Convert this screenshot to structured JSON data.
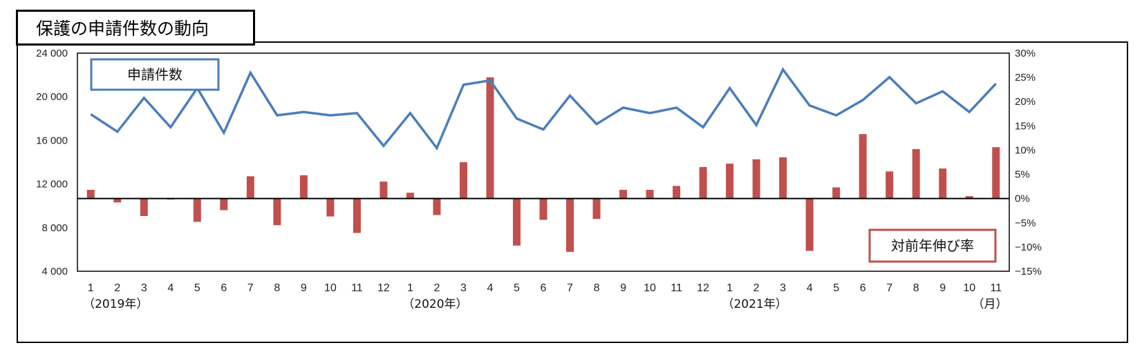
{
  "title": "保護の申請件数の動向",
  "chart_data": {
    "type": "bar+line",
    "categories": [
      "1",
      "2",
      "3",
      "4",
      "5",
      "6",
      "7",
      "8",
      "9",
      "10",
      "11",
      "12",
      "1",
      "2",
      "3",
      "4",
      "5",
      "6",
      "7",
      "8",
      "9",
      "10",
      "11",
      "12",
      "1",
      "2",
      "3",
      "4",
      "5",
      "6",
      "7",
      "8",
      "9",
      "10",
      "11"
    ],
    "year_labels": [
      {
        "index": 0,
        "label": "（2019年）"
      },
      {
        "index": 12,
        "label": "（2020年）"
      },
      {
        "index": 24,
        "label": "（2021年）"
      }
    ],
    "x_unit": "（月）",
    "series": [
      {
        "name": "申請件数",
        "type": "line",
        "axis": "left",
        "color": "#4a7ebb",
        "values": [
          18400,
          16800,
          19900,
          17200,
          20800,
          16700,
          22200,
          18300,
          18600,
          18300,
          18500,
          15500,
          18500,
          15300,
          21100,
          21500,
          18000,
          17000,
          20100,
          17500,
          19000,
          18500,
          19000,
          17200,
          20800,
          17400,
          22500,
          19200,
          18300,
          19700,
          21800,
          19400,
          20500,
          18600,
          21200
        ]
      },
      {
        "name": "対前年伸び率",
        "type": "bar",
        "axis": "right",
        "color": "#c0504d",
        "values": [
          1.8,
          -0.8,
          -3.6,
          -0.2,
          -4.8,
          -2.4,
          4.6,
          -5.5,
          4.8,
          -3.7,
          -7.1,
          3.5,
          1.2,
          -3.4,
          7.5,
          25.0,
          -9.7,
          -4.4,
          -11.0,
          -4.2,
          1.8,
          1.8,
          2.6,
          6.5,
          7.2,
          8.1,
          8.5,
          -10.8,
          2.3,
          13.3,
          5.6,
          10.2,
          6.2,
          0.5,
          10.6
        ]
      }
    ],
    "y_left": {
      "min": 4000,
      "max": 24000,
      "ticks": [
        "4 000",
        "8 000",
        "12 000",
        "16 000",
        "20 000",
        "24 000"
      ]
    },
    "y_right": {
      "min": -15,
      "max": 30,
      "ticks": [
        "−15%",
        "−10%",
        "−5%",
        "0%",
        "5%",
        "10%",
        "15%",
        "20%",
        "25%",
        "30%"
      ]
    },
    "legend_line_label": "申請件数",
    "legend_bar_label": "対前年伸び率",
    "grid": false
  }
}
